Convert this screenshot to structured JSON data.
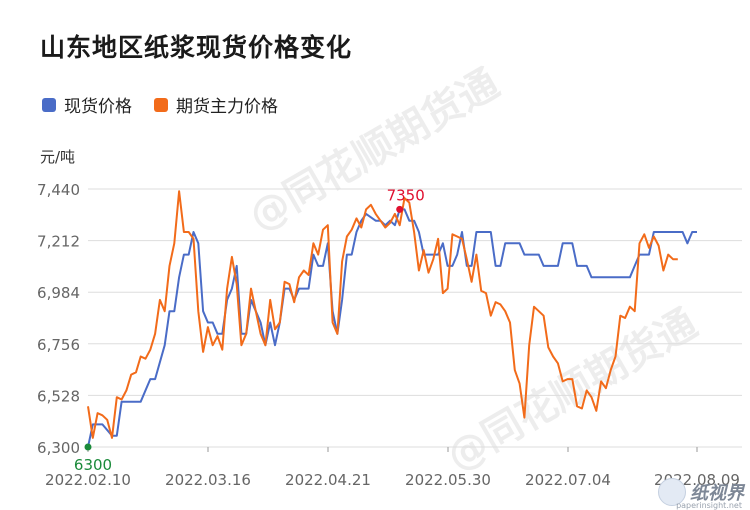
{
  "title": "山东地区纸浆现货价格变化",
  "unit": "元/吨",
  "watermark": "@同花顺期货通",
  "brand": {
    "name": "纸视界",
    "site": "paperinsight.net"
  },
  "colors": {
    "spot": "#4a6cc7",
    "futures": "#f26b1a",
    "grid": "#dddddd",
    "max_label": "#e0102f",
    "min_label": "#1a8a3a"
  },
  "chart_data": {
    "type": "line",
    "title": "山东地区纸浆现货价格变化",
    "ylabel": "元/吨",
    "ylim": [
      6300,
      7440
    ],
    "yticks": [
      6300,
      6528,
      6756,
      6984,
      7212,
      7440
    ],
    "xticks": [
      "2022.02.10",
      "2022.03.16",
      "2022.04.21",
      "2022.05.30",
      "2022.07.04",
      "2022.08.09"
    ],
    "legend_position": "top-left",
    "grid": "horizontal",
    "x_count": 128,
    "annotations": [
      {
        "text": "7350",
        "x_index": 65,
        "value": 7350,
        "kind": "max"
      },
      {
        "text": "6300",
        "x_index": 0,
        "value": 6300,
        "kind": "min"
      }
    ],
    "series": [
      {
        "name": "现货价格",
        "color": "#4a6cc7",
        "points": [
          [
            0,
            6300
          ],
          [
            1,
            6400
          ],
          [
            3,
            6400
          ],
          [
            5,
            6350
          ],
          [
            6,
            6350
          ],
          [
            7,
            6500
          ],
          [
            9,
            6500
          ],
          [
            11,
            6500
          ],
          [
            13,
            6600
          ],
          [
            14,
            6600
          ],
          [
            16,
            6750
          ],
          [
            17,
            6900
          ],
          [
            18,
            6900
          ],
          [
            19,
            7050
          ],
          [
            20,
            7150
          ],
          [
            21,
            7150
          ],
          [
            22,
            7250
          ],
          [
            23,
            7200
          ],
          [
            24,
            6900
          ],
          [
            25,
            6850
          ],
          [
            26,
            6850
          ],
          [
            27,
            6800
          ],
          [
            28,
            6800
          ],
          [
            29,
            6950
          ],
          [
            30,
            7000
          ],
          [
            31,
            7100
          ],
          [
            32,
            6800
          ],
          [
            33,
            6800
          ],
          [
            34,
            6950
          ],
          [
            35,
            6900
          ],
          [
            36,
            6850
          ],
          [
            37,
            6750
          ],
          [
            38,
            6850
          ],
          [
            39,
            6750
          ],
          [
            40,
            6850
          ],
          [
            41,
            7000
          ],
          [
            42,
            7000
          ],
          [
            43,
            6950
          ],
          [
            44,
            7000
          ],
          [
            45,
            7000
          ],
          [
            46,
            7000
          ],
          [
            47,
            7150
          ],
          [
            48,
            7100
          ],
          [
            49,
            7100
          ],
          [
            50,
            7200
          ],
          [
            51,
            6900
          ],
          [
            52,
            6800
          ],
          [
            53,
            6950
          ],
          [
            54,
            7150
          ],
          [
            55,
            7150
          ],
          [
            56,
            7250
          ],
          [
            57,
            7300
          ],
          [
            58,
            7330
          ],
          [
            60,
            7300
          ],
          [
            61,
            7300
          ],
          [
            62,
            7280
          ],
          [
            63,
            7300
          ],
          [
            64,
            7280
          ],
          [
            65,
            7350
          ],
          [
            66,
            7350
          ],
          [
            67,
            7300
          ],
          [
            68,
            7300
          ],
          [
            69,
            7250
          ],
          [
            70,
            7150
          ],
          [
            71,
            7150
          ],
          [
            72,
            7150
          ],
          [
            73,
            7150
          ],
          [
            74,
            7200
          ],
          [
            75,
            7100
          ],
          [
            76,
            7100
          ],
          [
            77,
            7150
          ],
          [
            78,
            7250
          ],
          [
            79,
            7100
          ],
          [
            80,
            7100
          ],
          [
            81,
            7250
          ],
          [
            82,
            7250
          ],
          [
            83,
            7250
          ],
          [
            84,
            7250
          ],
          [
            85,
            7100
          ],
          [
            86,
            7100
          ],
          [
            87,
            7200
          ],
          [
            88,
            7200
          ],
          [
            89,
            7200
          ],
          [
            90,
            7200
          ],
          [
            91,
            7150
          ],
          [
            92,
            7150
          ],
          [
            93,
            7150
          ],
          [
            94,
            7150
          ],
          [
            95,
            7100
          ],
          [
            96,
            7100
          ],
          [
            97,
            7100
          ],
          [
            98,
            7100
          ],
          [
            99,
            7200
          ],
          [
            100,
            7200
          ],
          [
            101,
            7200
          ],
          [
            102,
            7100
          ],
          [
            103,
            7100
          ],
          [
            104,
            7100
          ],
          [
            105,
            7050
          ],
          [
            106,
            7050
          ],
          [
            108,
            7050
          ],
          [
            110,
            7050
          ],
          [
            112,
            7050
          ],
          [
            113,
            7050
          ],
          [
            114,
            7100
          ],
          [
            115,
            7150
          ],
          [
            116,
            7150
          ],
          [
            117,
            7150
          ],
          [
            118,
            7250
          ],
          [
            120,
            7250
          ],
          [
            122,
            7250
          ],
          [
            124,
            7250
          ],
          [
            125,
            7200
          ],
          [
            126,
            7250
          ],
          [
            127,
            7250
          ]
        ]
      },
      {
        "name": "期货主力价格",
        "color": "#f26b1a",
        "points": [
          [
            0,
            6480
          ],
          [
            1,
            6340
          ],
          [
            2,
            6450
          ],
          [
            3,
            6440
          ],
          [
            4,
            6420
          ],
          [
            5,
            6340
          ],
          [
            6,
            6520
          ],
          [
            7,
            6510
          ],
          [
            8,
            6550
          ],
          [
            9,
            6620
          ],
          [
            10,
            6630
          ],
          [
            11,
            6700
          ],
          [
            12,
            6690
          ],
          [
            13,
            6730
          ],
          [
            14,
            6800
          ],
          [
            15,
            6950
          ],
          [
            16,
            6900
          ],
          [
            17,
            7100
          ],
          [
            18,
            7200
          ],
          [
            19,
            7430
          ],
          [
            20,
            7250
          ],
          [
            21,
            7250
          ],
          [
            22,
            7220
          ],
          [
            23,
            6900
          ],
          [
            24,
            6720
          ],
          [
            25,
            6830
          ],
          [
            26,
            6750
          ],
          [
            27,
            6790
          ],
          [
            28,
            6730
          ],
          [
            29,
            7000
          ],
          [
            30,
            7140
          ],
          [
            31,
            7020
          ],
          [
            32,
            6750
          ],
          [
            33,
            6800
          ],
          [
            34,
            7000
          ],
          [
            35,
            6900
          ],
          [
            36,
            6800
          ],
          [
            37,
            6750
          ],
          [
            38,
            6950
          ],
          [
            39,
            6820
          ],
          [
            40,
            6850
          ],
          [
            41,
            7030
          ],
          [
            42,
            7020
          ],
          [
            43,
            6940
          ],
          [
            44,
            7050
          ],
          [
            45,
            7080
          ],
          [
            46,
            7060
          ],
          [
            47,
            7200
          ],
          [
            48,
            7150
          ],
          [
            49,
            7260
          ],
          [
            50,
            7280
          ],
          [
            51,
            6850
          ],
          [
            52,
            6800
          ],
          [
            53,
            7120
          ],
          [
            54,
            7230
          ],
          [
            55,
            7260
          ],
          [
            56,
            7310
          ],
          [
            57,
            7270
          ],
          [
            58,
            7350
          ],
          [
            59,
            7370
          ],
          [
            60,
            7330
          ],
          [
            61,
            7300
          ],
          [
            62,
            7270
          ],
          [
            63,
            7290
          ],
          [
            64,
            7330
          ],
          [
            65,
            7280
          ],
          [
            66,
            7400
          ],
          [
            67,
            7380
          ],
          [
            68,
            7250
          ],
          [
            69,
            7080
          ],
          [
            70,
            7170
          ],
          [
            71,
            7070
          ],
          [
            72,
            7130
          ],
          [
            73,
            7220
          ],
          [
            74,
            6980
          ],
          [
            75,
            7000
          ],
          [
            76,
            7240
          ],
          [
            77,
            7230
          ],
          [
            78,
            7220
          ],
          [
            79,
            7130
          ],
          [
            80,
            7030
          ],
          [
            81,
            7150
          ],
          [
            82,
            6990
          ],
          [
            83,
            6980
          ],
          [
            84,
            6880
          ],
          [
            85,
            6940
          ],
          [
            86,
            6930
          ],
          [
            87,
            6900
          ],
          [
            88,
            6850
          ],
          [
            89,
            6640
          ],
          [
            90,
            6580
          ],
          [
            91,
            6430
          ],
          [
            92,
            6750
          ],
          [
            93,
            6920
          ],
          [
            94,
            6900
          ],
          [
            95,
            6880
          ],
          [
            96,
            6740
          ],
          [
            97,
            6700
          ],
          [
            98,
            6670
          ],
          [
            99,
            6590
          ],
          [
            100,
            6600
          ],
          [
            101,
            6600
          ],
          [
            102,
            6480
          ],
          [
            103,
            6470
          ],
          [
            104,
            6550
          ],
          [
            105,
            6520
          ],
          [
            106,
            6460
          ],
          [
            107,
            6590
          ],
          [
            108,
            6560
          ],
          [
            109,
            6640
          ],
          [
            110,
            6700
          ],
          [
            111,
            6880
          ],
          [
            112,
            6870
          ],
          [
            113,
            6920
          ],
          [
            114,
            6900
          ],
          [
            115,
            7200
          ],
          [
            116,
            7240
          ],
          [
            117,
            7180
          ],
          [
            118,
            7230
          ],
          [
            119,
            7190
          ],
          [
            120,
            7080
          ],
          [
            121,
            7150
          ],
          [
            122,
            7130
          ],
          [
            123,
            7130
          ]
        ]
      }
    ]
  }
}
